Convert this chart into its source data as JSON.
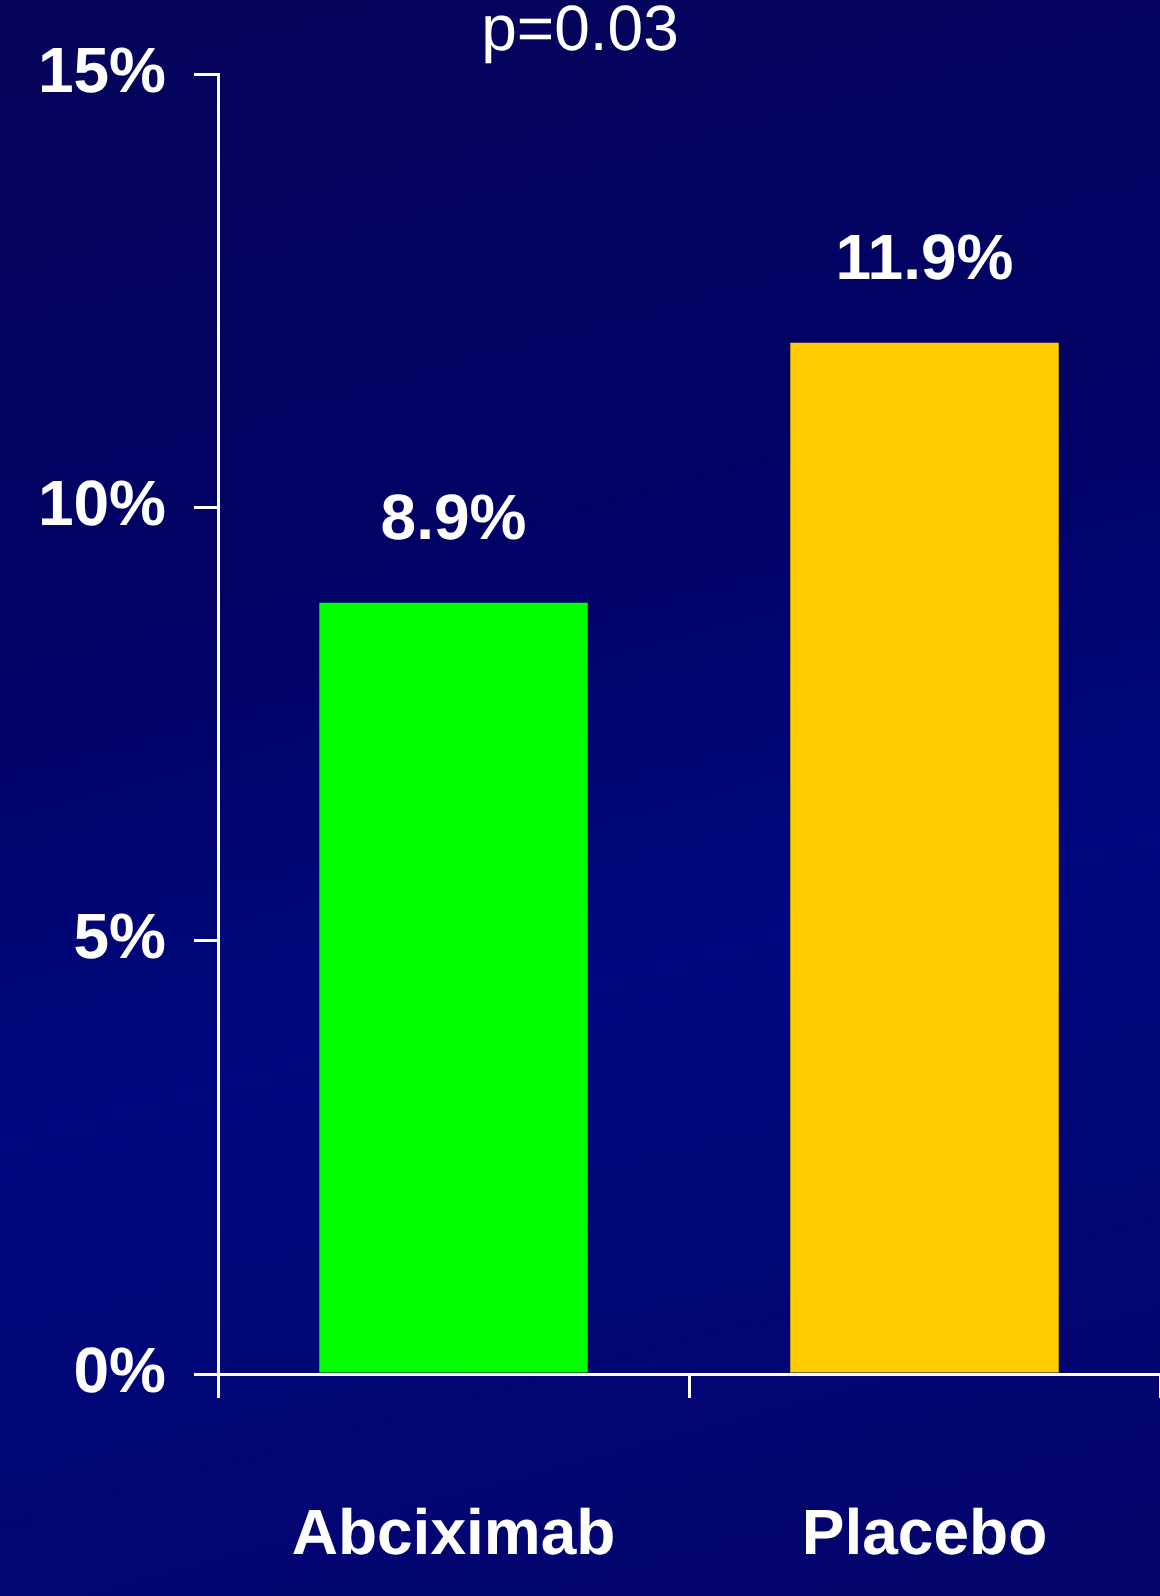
{
  "chart_data": {
    "type": "bar",
    "title": "p=0.03",
    "categories": [
      "Abciximab",
      "Placebo"
    ],
    "values": [
      8.9,
      11.9
    ],
    "colors": [
      "#00ff00",
      "#ffcc00"
    ],
    "value_labels": [
      "8.9%",
      "11.9%"
    ],
    "ylim": [
      0,
      15
    ],
    "yticks": [
      {
        "value": 0,
        "label": "0%"
      },
      {
        "value": 5,
        "label": "5%"
      },
      {
        "value": 10,
        "label": "10%"
      },
      {
        "value": 15,
        "label": "15%"
      }
    ]
  }
}
